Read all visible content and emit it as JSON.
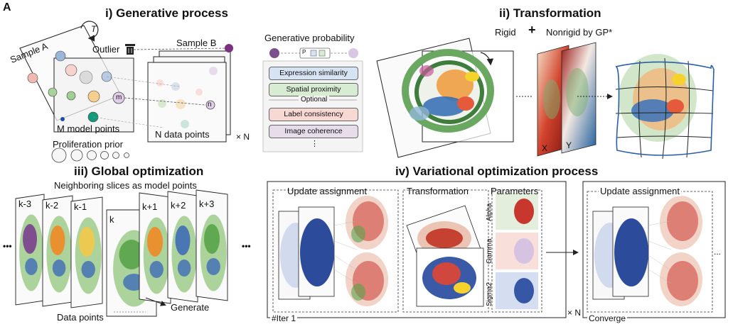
{
  "panel_letter": "A",
  "sections": {
    "generative": {
      "title": "i) Generative process",
      "sample_a": "Sample A",
      "sample_b": "Sample B",
      "transform_symbol": "T",
      "outlier": "Outlier",
      "model_points": "M model points",
      "data_points": "N data points",
      "times_n": "× N",
      "proliferation_prior": "Proliferation prior",
      "point_m": "m",
      "point_n": "n",
      "gen_prob_title": "Generative probability",
      "gen_prob_formula": "P",
      "terms": [
        "Expression similarity",
        "Spatial proximity",
        "Label consistency",
        "Image coherence"
      ],
      "optional_label": "Optional",
      "ellipsis": "⋮",
      "colors": {
        "expression": "#d6e3f2",
        "spatial": "#d8ecd3",
        "label": "#f8d8d2",
        "image": "#e6dcea",
        "purple_node": "#7b4e8c",
        "light_purple": "#d9c6e2"
      }
    },
    "transformation": {
      "title": "ii) Transformation",
      "rigid": "Rigid",
      "plus": "+",
      "nonrigid": "Nonrigid by GP*",
      "axis_x": "X",
      "axis_y": "Y"
    },
    "global": {
      "title": "iii) Global optimization",
      "subtitle": "Neighboring slices as model points",
      "slices": [
        "k-3",
        "k-2",
        "k-1",
        "k",
        "k+1",
        "k+2",
        "k+3"
      ],
      "dots": "•••",
      "generate": "Generate",
      "data_points": "Data points"
    },
    "variational": {
      "title": "iv) Variational optimization process",
      "update_assignment": "Update assignment",
      "transformation": "Transformation",
      "parameters": "Parameters",
      "params": [
        "Alpha",
        "Gamma",
        "Sigma2"
      ],
      "iter": "#Iter 1",
      "times_n": "× N",
      "update_assignment_2": "Update assignment",
      "converge": "Converge",
      "ellipsis": "..."
    }
  }
}
